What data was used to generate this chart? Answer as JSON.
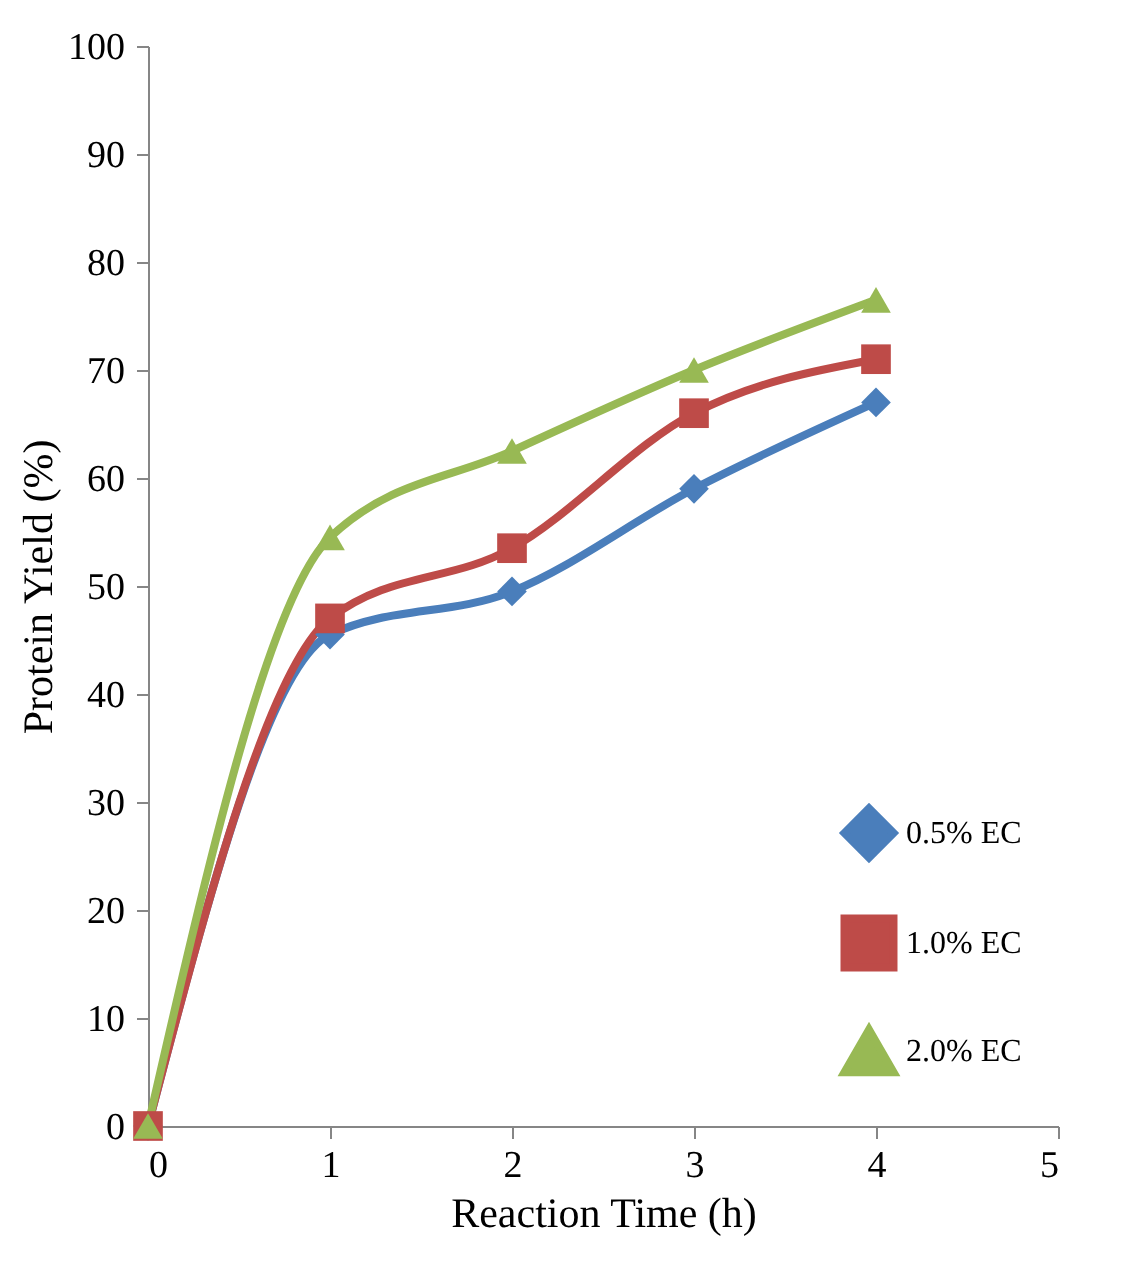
{
  "chart_data": {
    "type": "line",
    "xlabel": "Reaction Time (h)",
    "ylabel": "Protein Yield (%)",
    "x": [
      0,
      1,
      2,
      3,
      4
    ],
    "series": [
      {
        "name": "0.5% EC",
        "color": "#4a7ebb",
        "marker": "diamond",
        "values": [
          0,
          45.5,
          49.5,
          59,
          67
        ]
      },
      {
        "name": "1.0% EC",
        "color": "#be4b48",
        "marker": "square",
        "values": [
          0,
          47,
          53.5,
          66,
          71
        ]
      },
      {
        "name": "2.0% EC",
        "color": "#98b954",
        "marker": "triangle",
        "values": [
          0,
          54.5,
          62.5,
          70,
          76.5
        ]
      }
    ],
    "xlim": [
      0,
      5
    ],
    "xticks": [
      0,
      1,
      2,
      3,
      4,
      5
    ],
    "ylim": [
      0,
      100
    ],
    "yticks": [
      0,
      10,
      20,
      30,
      40,
      50,
      60,
      70,
      80,
      90,
      100
    ],
    "grid": false,
    "legend": "bottom right",
    "line_style": "solid"
  }
}
